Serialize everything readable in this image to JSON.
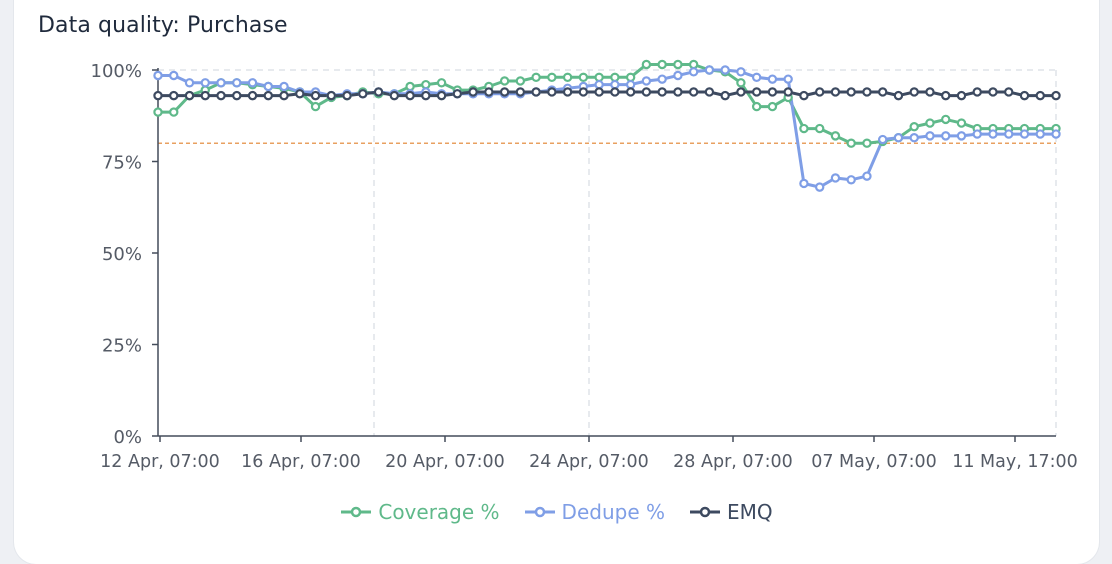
{
  "title": "Data quality: Purchase",
  "colors": {
    "coverage": "#5fb98a",
    "dedupe": "#7f9ee6",
    "emq": "#3d4a60",
    "threshold": "#e8a060",
    "axis": "#444c5a",
    "grid": "#dfe3e8"
  },
  "chart_data": {
    "type": "line",
    "xlabel": "",
    "ylabel": "",
    "ylim": [
      0,
      100
    ],
    "y_ticks": [
      "0%",
      "25%",
      "50%",
      "75%",
      "100%"
    ],
    "x_tick_labels": [
      "12 Apr, 07:00",
      "16 Apr, 07:00",
      "20 Apr, 07:00",
      "24 Apr, 07:00",
      "28 Apr, 07:00",
      "07 May, 07:00",
      "11 May, 17:00"
    ],
    "threshold": 80,
    "grid": "dashed vertical and top",
    "legend_position": "bottom-center",
    "series": [
      {
        "name": "Coverage %",
        "values": [
          88.5,
          88.5,
          93,
          94.5,
          96.5,
          96.5,
          96,
          95.5,
          95,
          94,
          90,
          92.5,
          93,
          94,
          93.5,
          93.5,
          95.5,
          96,
          96.5,
          94.5,
          94.5,
          95.5,
          97,
          97,
          98,
          98,
          98,
          98,
          98,
          98,
          98,
          101.5,
          101.5,
          101.5,
          101.5,
          100,
          99.5,
          96.5,
          90,
          90,
          92.5,
          84,
          84,
          82,
          80,
          80,
          80.5,
          81.5,
          84.5,
          85.5,
          86.5,
          85.5,
          84,
          84,
          84,
          84,
          84,
          84
        ]
      },
      {
        "name": "Dedupe %",
        "values": [
          98.5,
          98.5,
          96.5,
          96.5,
          96.5,
          96.5,
          96.5,
          95.5,
          95.5,
          94,
          94,
          93,
          93.5,
          93.5,
          94,
          93.5,
          93.5,
          94,
          93.5,
          93.5,
          93.5,
          93.5,
          93.5,
          93.5,
          94,
          94.5,
          95,
          95.5,
          96,
          96,
          96,
          97,
          97.5,
          98.5,
          99.5,
          100,
          100,
          99.5,
          98,
          97.5,
          97.5,
          69,
          68,
          70.5,
          70,
          71,
          81,
          81.5,
          81.5,
          82,
          82,
          82,
          82.5,
          82.5,
          82.5,
          82.5,
          82.5,
          82.5
        ]
      },
      {
        "name": "EMQ",
        "values": [
          93,
          93,
          93,
          93,
          93,
          93,
          93,
          93,
          93,
          93.5,
          93,
          93,
          93,
          93.5,
          94,
          93,
          93,
          93,
          93,
          93.5,
          94,
          94,
          94,
          94,
          94,
          94,
          94,
          94,
          94,
          94,
          94,
          94,
          94,
          94,
          94,
          94,
          93,
          94,
          94,
          94,
          94,
          93,
          94,
          94,
          94,
          94,
          94,
          93,
          94,
          94,
          93,
          93,
          94,
          94,
          94,
          93,
          93,
          93
        ]
      }
    ]
  }
}
